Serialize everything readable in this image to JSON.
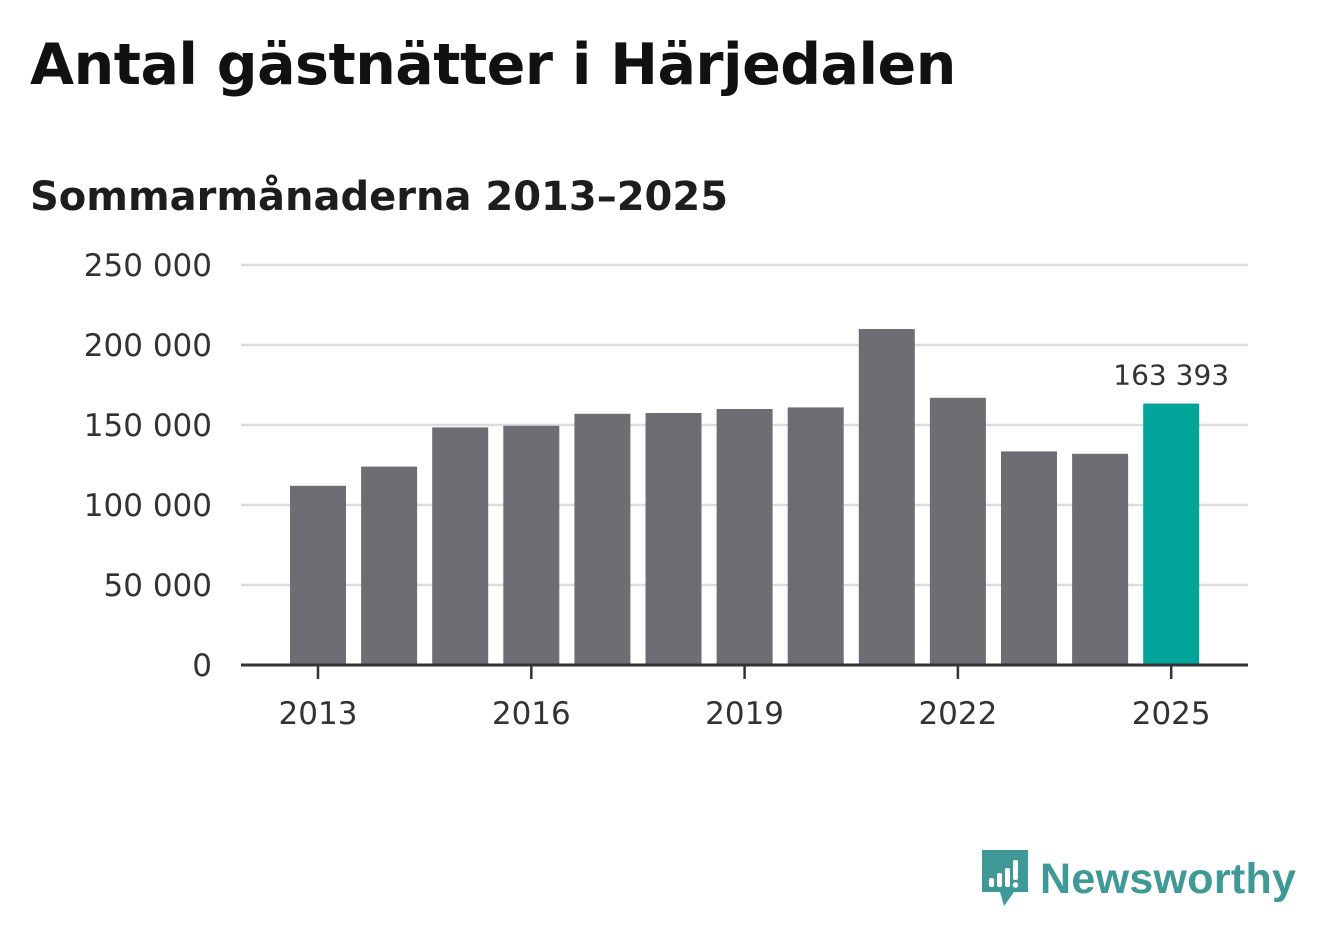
{
  "title": "Antal gästnätter i Härjedalen",
  "subtitle": "Sommarmånaderna 2013–2025",
  "brand": {
    "name": "Newsworthy",
    "color": "#3f9a97",
    "icon": "newsworthy-logo-icon"
  },
  "colors": {
    "bar": "#6e6d73",
    "highlight": "#00a498",
    "grid": "#dcdcdc",
    "axis": "#333333"
  },
  "chart_data": {
    "type": "bar",
    "categories": [
      "2013",
      "2014",
      "2015",
      "2016",
      "2017",
      "2018",
      "2019",
      "2020",
      "2021",
      "2022",
      "2023",
      "2024",
      "2025"
    ],
    "values": [
      112000,
      124000,
      148500,
      149500,
      157000,
      157500,
      160000,
      161000,
      210000,
      167000,
      133500,
      132000,
      163393
    ],
    "highlight_index": 12,
    "ylim": [
      0,
      250000
    ],
    "yticks": [
      0,
      50000,
      100000,
      150000,
      200000,
      250000
    ],
    "ytick_labels": [
      "0",
      "50 000",
      "100 000",
      "150 000",
      "200 000",
      "250 000"
    ],
    "xtick_labels": [
      "2013",
      "2016",
      "2019",
      "2022",
      "2025"
    ],
    "data_labels": [
      {
        "index": 12,
        "text": "163 393"
      }
    ],
    "xlabel": "",
    "ylabel": "",
    "grid": true
  }
}
